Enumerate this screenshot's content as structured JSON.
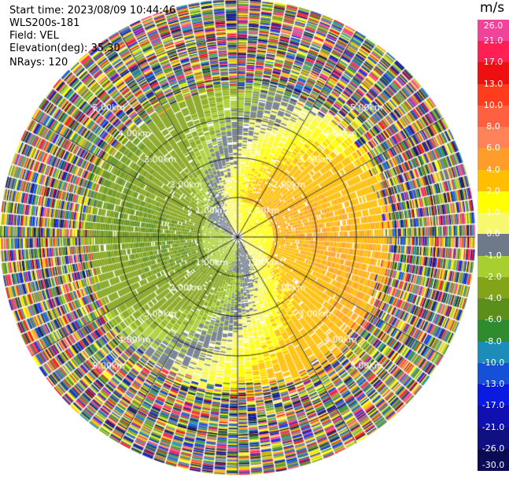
{
  "header": {
    "start_time": "Start time: 2023/08/09 10:44:46",
    "instrument": "WLS200s-181",
    "field": "Field: VEL",
    "elevation": "Elevation(deg): 35.30",
    "nrays": "NRays: 120"
  },
  "colorbar": {
    "unit": "m/s",
    "ticks": [
      "26.0",
      "21.0",
      "17.0",
      "13.0",
      "10.0",
      "8.0",
      "6.0",
      "4.0",
      "2.0",
      "1.0",
      "0.0",
      "-1.0",
      "-2.0",
      "-4.0",
      "-6.0",
      "-8.0",
      "-10.0",
      "-13.0",
      "-17.0",
      "-21.0",
      "-26.0",
      "-30.0"
    ],
    "colors": [
      "#f0449a",
      "#ff1f55",
      "#ee1010",
      "#ff3c1c",
      "#ff6040",
      "#ff8258",
      "#ff9d2a",
      "#ffbe00",
      "#ffff00",
      "#f8f870",
      "#6e7a8a",
      "#a8cf30",
      "#83a418",
      "#5b8f1a",
      "#2e8b2e",
      "#1e8cb8",
      "#1450d8",
      "#0a1ae0",
      "#1010b0",
      "#101080",
      "#0a0a55"
    ]
  },
  "chart_data": {
    "type": "heatmap",
    "projection": "polar PPI",
    "field": "VEL",
    "units": "m/s",
    "elevation_deg": 35.3,
    "n_rays": 120,
    "range_ring_labels": [
      "1.00km",
      "2.00km",
      "3.00km",
      "4.00km",
      "5.00km"
    ],
    "range_rings_km": [
      1,
      2,
      3,
      4,
      5
    ],
    "max_range_km": 6.0,
    "radial_spokes_deg": [
      0,
      30,
      60,
      90,
      120,
      150,
      180,
      210,
      240,
      270,
      300,
      330
    ],
    "color_scale_min": -30.0,
    "color_scale_max": 26.0,
    "pattern_notes": "approaching (+) velocities yellow/orange to the north-east, receding (-) green/olive to the south-west; near-zero grey band rotating with range; beyond ~3.5 km noisy multicolour returns"
  }
}
